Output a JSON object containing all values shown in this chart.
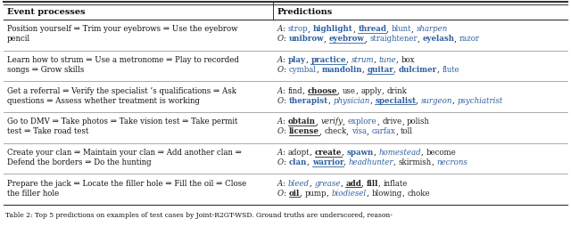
{
  "col1_header": "Event processes",
  "col2_header": "Predictions",
  "bg_color": "#ffffff",
  "caption": "Table 2: Top 5 predictions on examples of test cases by Joint-R2GT-WSD. Ground truths are underscored, reason-",
  "col_split": 0.478,
  "rows": [
    {
      "left": [
        "Position yourself ⇒ Trim your eyebrows ⇒ Use the eyebrow",
        "pencil"
      ],
      "right_A": [
        {
          "text": "A",
          "style": "italic",
          "color": "#222222"
        },
        {
          "text": ": ",
          "style": "normal",
          "color": "#222222"
        },
        {
          "text": "strop",
          "style": "normal",
          "color": "#3060a0"
        },
        {
          "text": ", ",
          "style": "normal",
          "color": "#222222"
        },
        {
          "text": "highlight",
          "style": "bold",
          "color": "#3060a0"
        },
        {
          "text": ", ",
          "style": "normal",
          "color": "#222222"
        },
        {
          "text": "thread",
          "style": "bold_underline",
          "color": "#3060a0"
        },
        {
          "text": ", ",
          "style": "normal",
          "color": "#222222"
        },
        {
          "text": "blunt",
          "style": "normal",
          "color": "#3060a0"
        },
        {
          "text": ", ",
          "style": "normal",
          "color": "#222222"
        },
        {
          "text": "sharpen",
          "style": "italic",
          "color": "#3060a0"
        }
      ],
      "right_O": [
        {
          "text": "O",
          "style": "italic",
          "color": "#222222"
        },
        {
          "text": ": ",
          "style": "normal",
          "color": "#222222"
        },
        {
          "text": "unibrow",
          "style": "bold",
          "color": "#3060a0"
        },
        {
          "text": ", ",
          "style": "normal",
          "color": "#222222"
        },
        {
          "text": "eyebrow",
          "style": "bold_underline",
          "color": "#3060a0"
        },
        {
          "text": ", ",
          "style": "normal",
          "color": "#222222"
        },
        {
          "text": "straightener",
          "style": "normal",
          "color": "#3060a0"
        },
        {
          "text": ", ",
          "style": "normal",
          "color": "#222222"
        },
        {
          "text": "eyelash",
          "style": "bold",
          "color": "#3060a0"
        },
        {
          "text": ", ",
          "style": "normal",
          "color": "#222222"
        },
        {
          "text": "razor",
          "style": "normal",
          "color": "#3060a0"
        }
      ]
    },
    {
      "left": [
        "Learn how to strum ⇒ Use a metronome ⇒ Play to recorded",
        "songs ⇒ Grow skills"
      ],
      "right_A": [
        {
          "text": "A",
          "style": "italic",
          "color": "#222222"
        },
        {
          "text": ": ",
          "style": "normal",
          "color": "#222222"
        },
        {
          "text": "play",
          "style": "bold",
          "color": "#3060a0"
        },
        {
          "text": ", ",
          "style": "normal",
          "color": "#222222"
        },
        {
          "text": "practice",
          "style": "bold_underline",
          "color": "#3060a0"
        },
        {
          "text": ", ",
          "style": "normal",
          "color": "#222222"
        },
        {
          "text": "strum",
          "style": "italic",
          "color": "#3060a0"
        },
        {
          "text": ", ",
          "style": "normal",
          "color": "#222222"
        },
        {
          "text": "tune",
          "style": "italic",
          "color": "#3060a0"
        },
        {
          "text": ", ",
          "style": "normal",
          "color": "#222222"
        },
        {
          "text": "box",
          "style": "normal",
          "color": "#222222"
        }
      ],
      "right_O": [
        {
          "text": "O",
          "style": "italic",
          "color": "#222222"
        },
        {
          "text": ": ",
          "style": "normal",
          "color": "#222222"
        },
        {
          "text": "cymbal",
          "style": "normal",
          "color": "#3060a0"
        },
        {
          "text": ", ",
          "style": "normal",
          "color": "#222222"
        },
        {
          "text": "mandolin",
          "style": "bold",
          "color": "#3060a0"
        },
        {
          "text": ", ",
          "style": "normal",
          "color": "#222222"
        },
        {
          "text": "guitar",
          "style": "bold_underline",
          "color": "#3060a0"
        },
        {
          "text": ", ",
          "style": "normal",
          "color": "#222222"
        },
        {
          "text": "dulcimer",
          "style": "bold",
          "color": "#3060a0"
        },
        {
          "text": ", ",
          "style": "normal",
          "color": "#222222"
        },
        {
          "text": "flute",
          "style": "normal",
          "color": "#3060a0"
        }
      ]
    },
    {
      "left": [
        "Get a referral ⇒ Verify the specialist ’s qualifications ⇒ Ask",
        "questions ⇒ Assess whether treatment is working"
      ],
      "right_A": [
        {
          "text": "A",
          "style": "italic",
          "color": "#222222"
        },
        {
          "text": ": ",
          "style": "normal",
          "color": "#222222"
        },
        {
          "text": "find",
          "style": "normal",
          "color": "#222222"
        },
        {
          "text": ", ",
          "style": "normal",
          "color": "#222222"
        },
        {
          "text": "choose",
          "style": "bold_underline",
          "color": "#222222"
        },
        {
          "text": ", ",
          "style": "normal",
          "color": "#222222"
        },
        {
          "text": "use",
          "style": "normal",
          "color": "#222222"
        },
        {
          "text": ", ",
          "style": "normal",
          "color": "#222222"
        },
        {
          "text": "apply",
          "style": "normal",
          "color": "#222222"
        },
        {
          "text": ", ",
          "style": "normal",
          "color": "#222222"
        },
        {
          "text": "drink",
          "style": "normal",
          "color": "#222222"
        }
      ],
      "right_O": [
        {
          "text": "O",
          "style": "italic",
          "color": "#222222"
        },
        {
          "text": ": ",
          "style": "normal",
          "color": "#222222"
        },
        {
          "text": "therapist",
          "style": "bold",
          "color": "#3060a0"
        },
        {
          "text": ", ",
          "style": "normal",
          "color": "#222222"
        },
        {
          "text": "physician",
          "style": "italic",
          "color": "#3060a0"
        },
        {
          "text": ", ",
          "style": "normal",
          "color": "#222222"
        },
        {
          "text": "specialist",
          "style": "bold_underline",
          "color": "#3060a0"
        },
        {
          "text": ", ",
          "style": "normal",
          "color": "#222222"
        },
        {
          "text": "surgeon",
          "style": "italic",
          "color": "#3060a0"
        },
        {
          "text": ", ",
          "style": "normal",
          "color": "#222222"
        },
        {
          "text": "psychiatrist",
          "style": "italic",
          "color": "#3060a0"
        }
      ]
    },
    {
      "left": [
        "Go to DMV ⇒ Take photos ⇒ Take vision test ⇒ Take permit",
        "test ⇒ Take road test"
      ],
      "right_A": [
        {
          "text": "A",
          "style": "italic",
          "color": "#222222"
        },
        {
          "text": ": ",
          "style": "normal",
          "color": "#222222"
        },
        {
          "text": "obtain",
          "style": "bold_underline",
          "color": "#222222"
        },
        {
          "text": ", ",
          "style": "normal",
          "color": "#222222"
        },
        {
          "text": "verify",
          "style": "italic",
          "color": "#222222"
        },
        {
          "text": ", ",
          "style": "normal",
          "color": "#222222"
        },
        {
          "text": "explore",
          "style": "normal",
          "color": "#3060a0"
        },
        {
          "text": ", ",
          "style": "normal",
          "color": "#222222"
        },
        {
          "text": "drive",
          "style": "normal",
          "color": "#222222"
        },
        {
          "text": ", ",
          "style": "normal",
          "color": "#222222"
        },
        {
          "text": "polish",
          "style": "normal",
          "color": "#222222"
        }
      ],
      "right_O": [
        {
          "text": "O",
          "style": "italic",
          "color": "#222222"
        },
        {
          "text": ": ",
          "style": "normal",
          "color": "#222222"
        },
        {
          "text": "license",
          "style": "bold_underline",
          "color": "#222222"
        },
        {
          "text": ", ",
          "style": "normal",
          "color": "#222222"
        },
        {
          "text": "check",
          "style": "normal",
          "color": "#222222"
        },
        {
          "text": ", ",
          "style": "normal",
          "color": "#222222"
        },
        {
          "text": "visa",
          "style": "normal",
          "color": "#3060a0"
        },
        {
          "text": ", ",
          "style": "normal",
          "color": "#222222"
        },
        {
          "text": "carfax",
          "style": "normal",
          "color": "#3060a0"
        },
        {
          "text": ", ",
          "style": "normal",
          "color": "#222222"
        },
        {
          "text": "toll",
          "style": "normal",
          "color": "#222222"
        }
      ]
    },
    {
      "left": [
        "Create your clan ⇒ Maintain your clan ⇒ Add another clan ⇒",
        "Defend the borders ⇒ Do the hunting"
      ],
      "right_A": [
        {
          "text": "A",
          "style": "italic",
          "color": "#222222"
        },
        {
          "text": ": ",
          "style": "normal",
          "color": "#222222"
        },
        {
          "text": "adopt",
          "style": "normal",
          "color": "#222222"
        },
        {
          "text": ", ",
          "style": "normal",
          "color": "#222222"
        },
        {
          "text": "create",
          "style": "bold_underline",
          "color": "#222222"
        },
        {
          "text": ", ",
          "style": "normal",
          "color": "#222222"
        },
        {
          "text": "spawn",
          "style": "bold",
          "color": "#3060a0"
        },
        {
          "text": ", ",
          "style": "normal",
          "color": "#222222"
        },
        {
          "text": "homestead",
          "style": "italic",
          "color": "#3060a0"
        },
        {
          "text": ", ",
          "style": "normal",
          "color": "#222222"
        },
        {
          "text": "become",
          "style": "normal",
          "color": "#222222"
        }
      ],
      "right_O": [
        {
          "text": "O",
          "style": "italic",
          "color": "#222222"
        },
        {
          "text": ": ",
          "style": "normal",
          "color": "#222222"
        },
        {
          "text": "clan",
          "style": "bold",
          "color": "#3060a0"
        },
        {
          "text": ", ",
          "style": "normal",
          "color": "#222222"
        },
        {
          "text": "warrior",
          "style": "bold_underline",
          "color": "#3060a0"
        },
        {
          "text": ", ",
          "style": "normal",
          "color": "#222222"
        },
        {
          "text": "headhunter",
          "style": "italic",
          "color": "#3060a0"
        },
        {
          "text": ", ",
          "style": "normal",
          "color": "#222222"
        },
        {
          "text": "skirmish",
          "style": "normal",
          "color": "#222222"
        },
        {
          "text": ", ",
          "style": "normal",
          "color": "#222222"
        },
        {
          "text": "necrons",
          "style": "italic",
          "color": "#3060a0"
        }
      ]
    },
    {
      "left": [
        "Prepare the jack ⇒ Locate the filler hole ⇒ Fill the oil ⇒ Close",
        "the filler hole"
      ],
      "right_A": [
        {
          "text": "A",
          "style": "italic",
          "color": "#222222"
        },
        {
          "text": ": ",
          "style": "normal",
          "color": "#222222"
        },
        {
          "text": "bleed",
          "style": "italic",
          "color": "#3060a0"
        },
        {
          "text": ", ",
          "style": "normal",
          "color": "#222222"
        },
        {
          "text": "grease",
          "style": "italic",
          "color": "#3060a0"
        },
        {
          "text": ", ",
          "style": "normal",
          "color": "#222222"
        },
        {
          "text": "add",
          "style": "bold_underline",
          "color": "#222222"
        },
        {
          "text": ", ",
          "style": "normal",
          "color": "#222222"
        },
        {
          "text": "fill",
          "style": "bold",
          "color": "#222222"
        },
        {
          "text": ", ",
          "style": "normal",
          "color": "#222222"
        },
        {
          "text": "inflate",
          "style": "normal",
          "color": "#222222"
        }
      ],
      "right_O": [
        {
          "text": "O",
          "style": "italic",
          "color": "#222222"
        },
        {
          "text": ": ",
          "style": "normal",
          "color": "#222222"
        },
        {
          "text": "oil",
          "style": "bold_underline",
          "color": "#222222"
        },
        {
          "text": ", ",
          "style": "normal",
          "color": "#222222"
        },
        {
          "text": "pump",
          "style": "normal",
          "color": "#222222"
        },
        {
          "text": ", ",
          "style": "normal",
          "color": "#222222"
        },
        {
          "text": "biodiesel",
          "style": "italic",
          "color": "#3060a0"
        },
        {
          "text": ", ",
          "style": "normal",
          "color": "#222222"
        },
        {
          "text": "blowing",
          "style": "normal",
          "color": "#222222"
        },
        {
          "text": ", ",
          "style": "normal",
          "color": "#222222"
        },
        {
          "text": "choke",
          "style": "normal",
          "color": "#222222"
        }
      ]
    }
  ]
}
